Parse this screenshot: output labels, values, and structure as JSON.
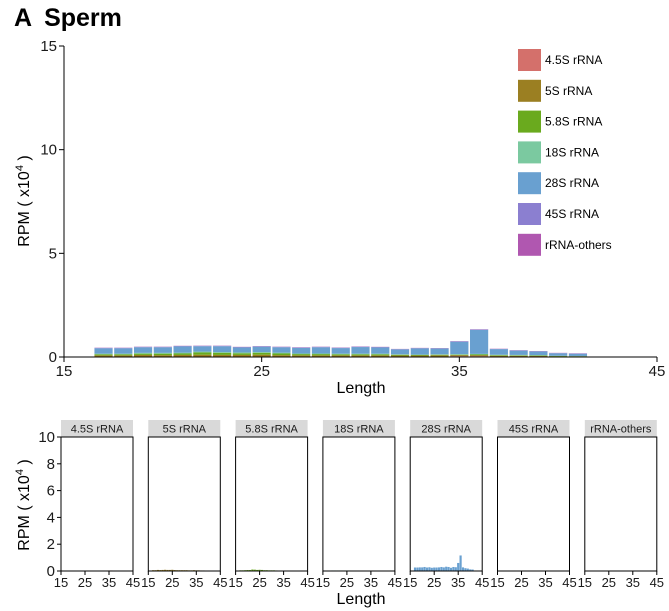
{
  "panel": {
    "letter": "A",
    "title": "Sperm"
  },
  "chart_data": [
    {
      "type": "bar",
      "stacked": true,
      "xlabel": "Length",
      "ylabel": "RPM ( x10^4 )",
      "ylabel_base": "RPM ( x10",
      "ylabel_exp": "4",
      "ylabel_tail": " )",
      "xlim": [
        15,
        45
      ],
      "ylim": [
        0,
        15
      ],
      "xticks": [
        "15",
        "25",
        "35",
        "45"
      ],
      "yticks": [
        "0",
        "5",
        "10",
        "15"
      ],
      "legend_position": "top-right",
      "x": [
        17,
        18,
        19,
        20,
        21,
        22,
        23,
        24,
        25,
        26,
        27,
        28,
        29,
        30,
        31,
        32,
        33,
        34,
        35,
        36,
        37,
        38,
        39,
        40,
        41
      ],
      "series": [
        {
          "name": "4.5S rRNA",
          "color": "#d4706b",
          "values": [
            0.02,
            0.02,
            0.02,
            0.02,
            0.02,
            0.02,
            0.02,
            0.02,
            0.02,
            0.02,
            0.02,
            0.02,
            0.02,
            0.02,
            0.02,
            0.02,
            0.02,
            0.02,
            0.04,
            0.04,
            0.02,
            0.02,
            0.02,
            0.01,
            0.01
          ]
        },
        {
          "name": "5S rRNA",
          "color": "#9b7f22",
          "values": [
            0.06,
            0.06,
            0.08,
            0.07,
            0.08,
            0.09,
            0.08,
            0.08,
            0.09,
            0.07,
            0.06,
            0.06,
            0.06,
            0.06,
            0.06,
            0.05,
            0.05,
            0.06,
            0.05,
            0.05,
            0.04,
            0.04,
            0.03,
            0.02,
            0.02
          ]
        },
        {
          "name": "5.8S rRNA",
          "color": "#6aaa1e",
          "values": [
            0.05,
            0.05,
            0.06,
            0.07,
            0.07,
            0.11,
            0.1,
            0.08,
            0.09,
            0.08,
            0.06,
            0.06,
            0.05,
            0.05,
            0.05,
            0.04,
            0.03,
            0.03,
            0.02,
            0.03,
            0.03,
            0.02,
            0.02,
            0.02,
            0.01
          ]
        },
        {
          "name": "18S rRNA",
          "color": "#7bc9a0",
          "values": [
            0.03,
            0.03,
            0.04,
            0.04,
            0.04,
            0.04,
            0.04,
            0.04,
            0.04,
            0.04,
            0.03,
            0.03,
            0.03,
            0.03,
            0.03,
            0.02,
            0.02,
            0.02,
            0.03,
            0.03,
            0.02,
            0.02,
            0.02,
            0.01,
            0.01
          ]
        },
        {
          "name": "28S rRNA",
          "color": "#69a0d0",
          "values": [
            0.26,
            0.26,
            0.27,
            0.27,
            0.3,
            0.26,
            0.28,
            0.24,
            0.26,
            0.26,
            0.27,
            0.3,
            0.27,
            0.32,
            0.3,
            0.24,
            0.3,
            0.28,
            0.6,
            1.16,
            0.27,
            0.21,
            0.18,
            0.12,
            0.11
          ]
        },
        {
          "name": "45S rRNA",
          "color": "#8b7fd0",
          "values": [
            0.02,
            0.02,
            0.02,
            0.02,
            0.02,
            0.02,
            0.02,
            0.02,
            0.02,
            0.02,
            0.02,
            0.02,
            0.02,
            0.02,
            0.02,
            0.01,
            0.01,
            0.01,
            0.02,
            0.02,
            0.01,
            0.01,
            0.01,
            0.01,
            0.01
          ]
        },
        {
          "name": "rRNA-others",
          "color": "#b057b0",
          "values": [
            0.01,
            0.01,
            0.01,
            0.01,
            0.01,
            0.01,
            0.01,
            0.01,
            0.01,
            0.01,
            0.01,
            0.01,
            0.01,
            0.01,
            0.01,
            0.01,
            0.01,
            0.01,
            0.01,
            0.01,
            0.01,
            0.01,
            0.01,
            0.01,
            0.01
          ]
        }
      ]
    },
    {
      "type": "bar",
      "faceted": true,
      "xlabel": "Length",
      "ylabel": "RPM ( x10^4 )",
      "ylabel_base": "RPM ( x10",
      "ylabel_exp": "4",
      "ylabel_tail": " )",
      "xlim": [
        15,
        45
      ],
      "ylim": [
        0,
        10
      ],
      "xticks": [
        "15",
        "25",
        "35",
        "45"
      ],
      "yticks": [
        "0",
        "2",
        "4",
        "6",
        "8",
        "10"
      ],
      "facets": [
        "4.5S rRNA",
        "5S rRNA",
        "5.8S rRNA",
        "18S rRNA",
        "28S rRNA",
        "45S rRNA",
        "rRNA-others"
      ]
    }
  ]
}
